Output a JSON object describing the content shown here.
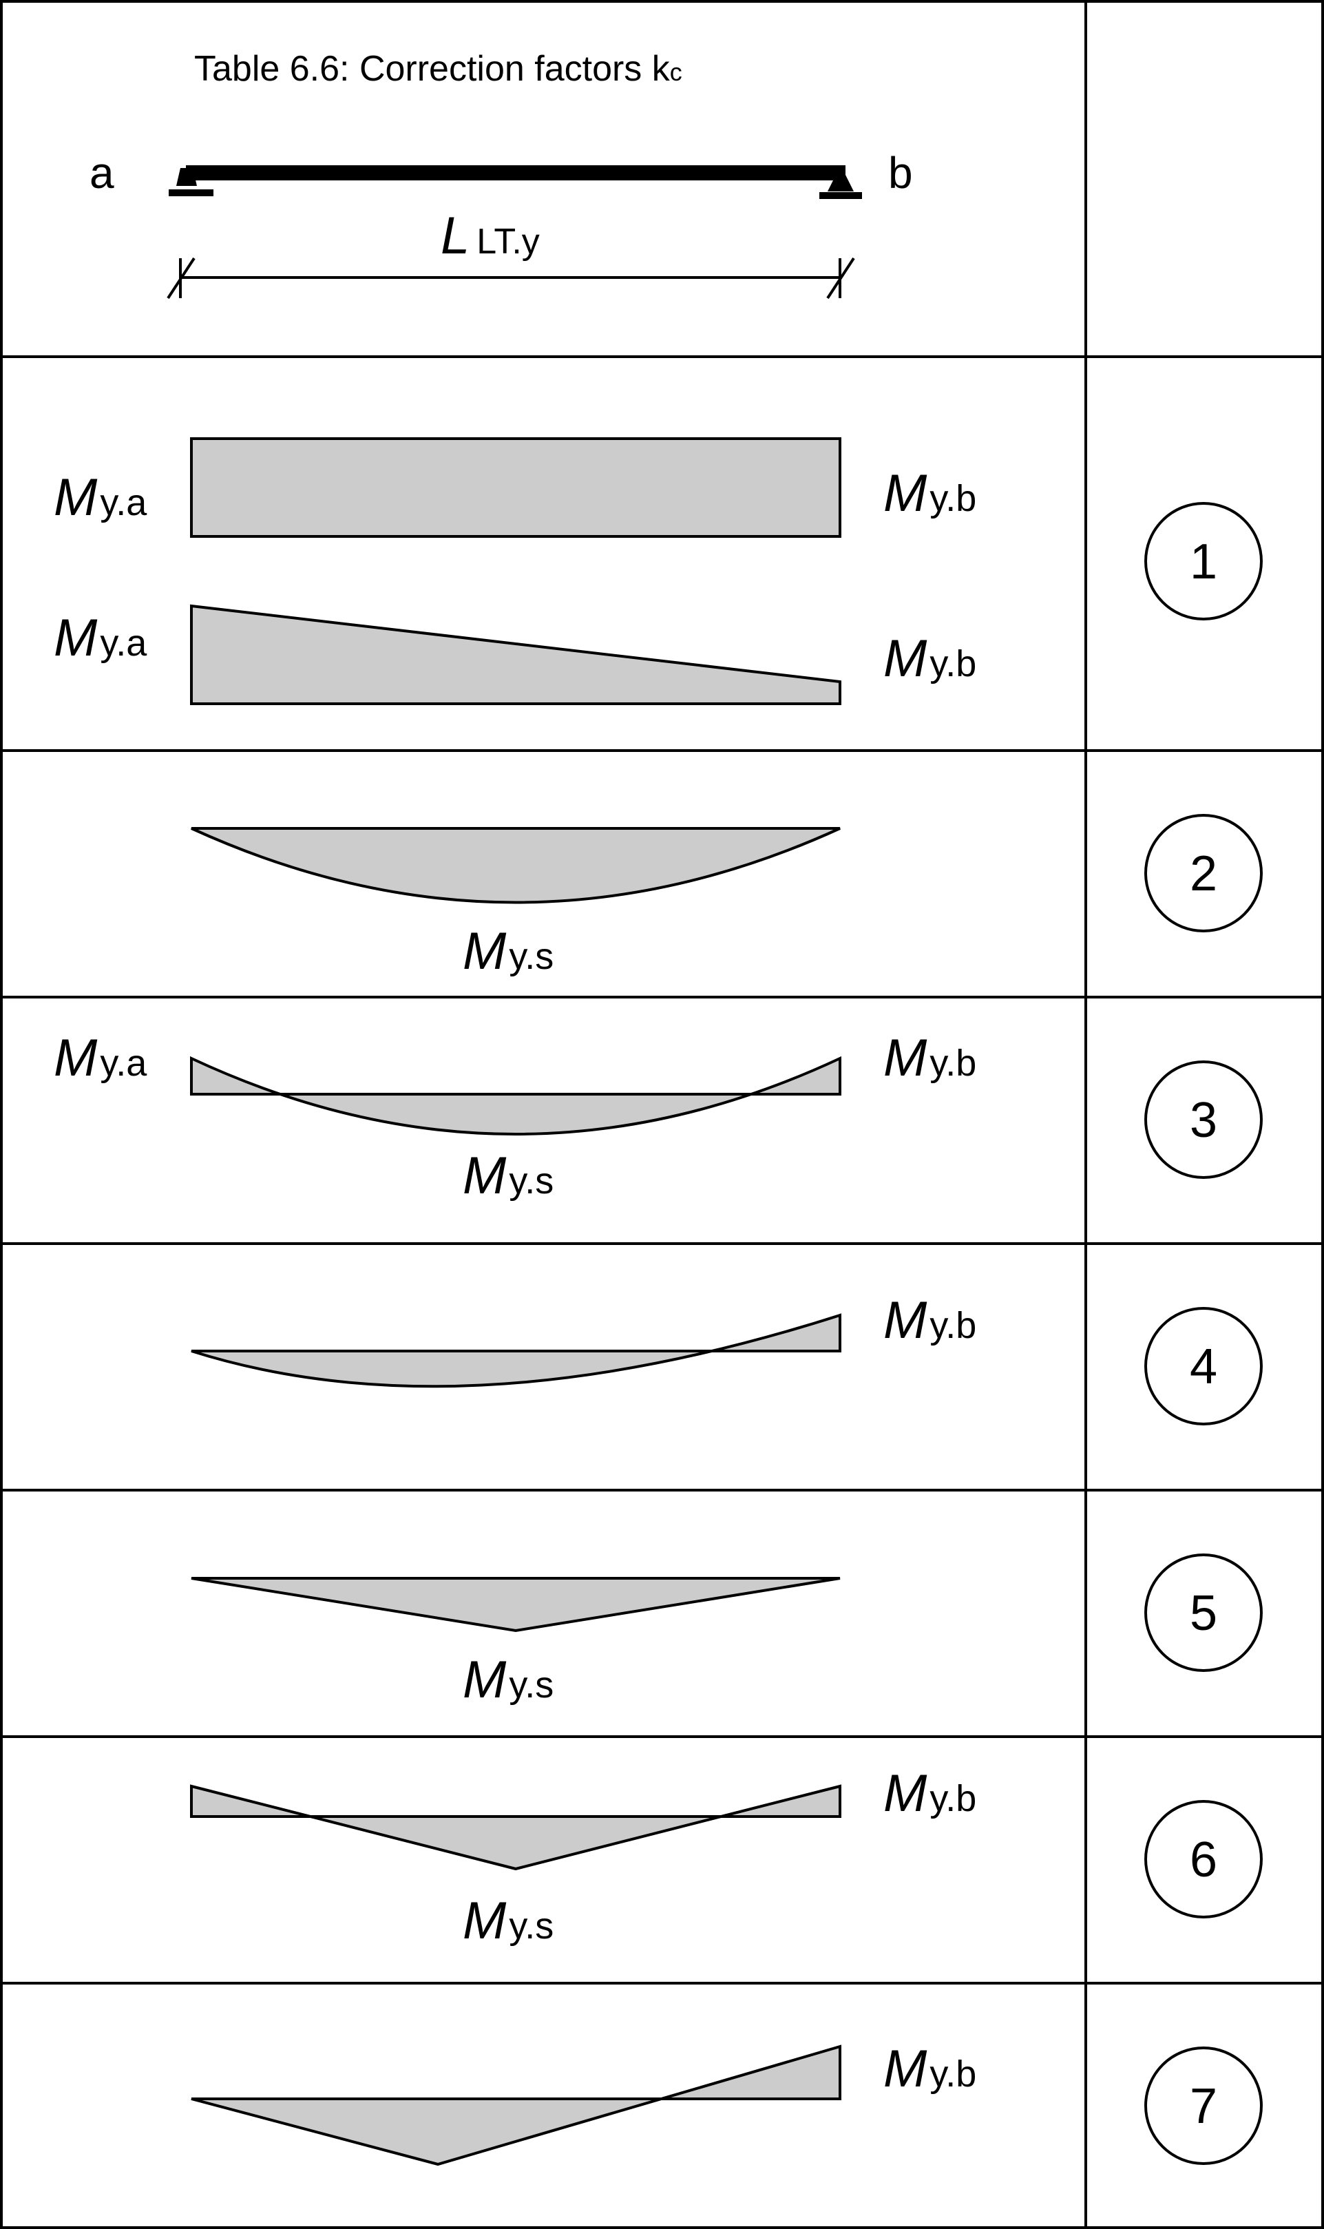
{
  "header": {
    "title_main": "Table 6.6: Correction factors k",
    "title_sub": "c",
    "end_a": "a",
    "end_b": "b",
    "length_symbol": "L",
    "length_subscript": "LT.y"
  },
  "moment": {
    "symbol": "M",
    "sub_a": "y.a",
    "sub_b": "y.b",
    "sub_s": "y.s"
  },
  "cases": [
    {
      "number": "1"
    },
    {
      "number": "2"
    },
    {
      "number": "3"
    },
    {
      "number": "4"
    },
    {
      "number": "5"
    },
    {
      "number": "6"
    },
    {
      "number": "7"
    }
  ],
  "colors": {
    "fill": "#cccccc",
    "stroke": "#000000",
    "background": "#ffffff"
  }
}
